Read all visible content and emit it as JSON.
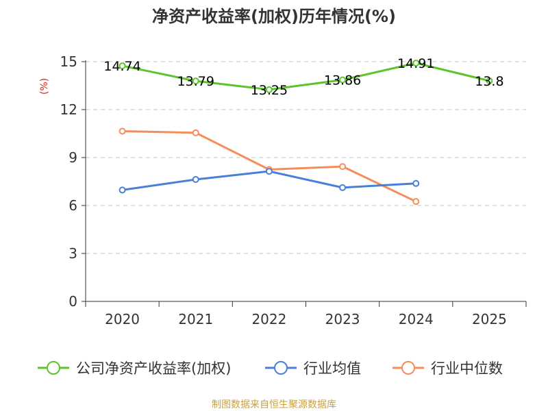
{
  "chart_data": {
    "type": "line",
    "title": "净资产收益率(加权)历年情况(%)",
    "ylabel": "(%)",
    "ylim": [
      0,
      15
    ],
    "yticks": [
      0,
      3,
      6,
      9,
      12,
      15
    ],
    "categories": [
      "2020",
      "2021",
      "2022",
      "2023",
      "2024",
      "2025"
    ],
    "grid": true,
    "legend_position": "bottom",
    "series": [
      {
        "name": "公司净资产收益率(加权)",
        "color": "#5bc42a",
        "values": [
          14.74,
          13.79,
          13.25,
          13.86,
          14.91,
          13.8
        ],
        "labels": [
          "14.74",
          "13.79",
          "13.25",
          "13.86",
          "14.91",
          "13.8"
        ]
      },
      {
        "name": "行业均值",
        "color": "#4a7fd9",
        "values": [
          6.97,
          7.63,
          8.14,
          7.12,
          7.38,
          null
        ]
      },
      {
        "name": "行业中位数",
        "color": "#f58d5b",
        "values": [
          10.65,
          10.55,
          8.25,
          8.44,
          6.25,
          null
        ]
      }
    ]
  },
  "source": {
    "text": "制图数据来自恒生聚源数据库",
    "color": "#c8a040"
  }
}
